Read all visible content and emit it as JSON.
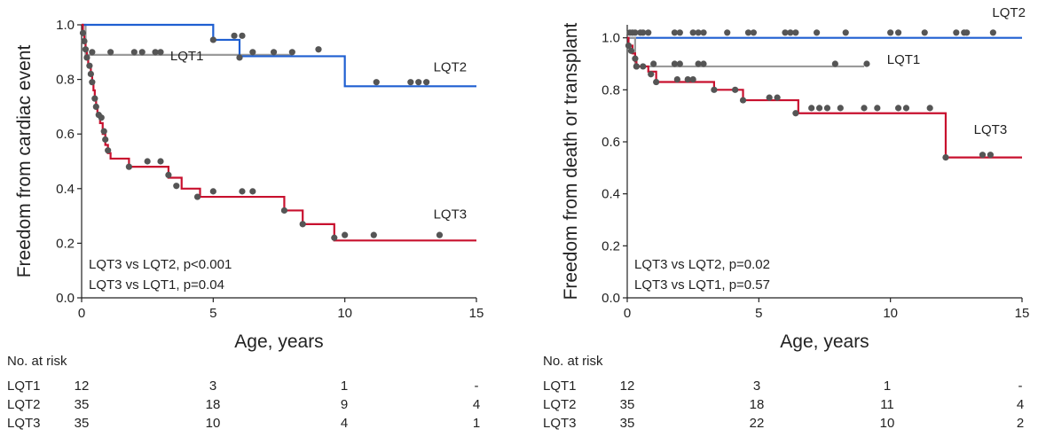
{
  "colors": {
    "LQT1": "#9a9a9a",
    "LQT2": "#1f5fd1",
    "LQT3": "#c8102e",
    "censor": "#555555"
  },
  "chart_data": [
    {
      "type": "line",
      "ylabel": "Freedom from cardiac event",
      "xlabel": "Age, years",
      "xlim": [
        0,
        15
      ],
      "ylim": [
        0,
        1.0
      ],
      "xticks": [
        "0",
        "5",
        "10",
        "15"
      ],
      "yticks": [
        "0.0",
        "0.2",
        "0.4",
        "0.6",
        "0.8",
        "1.0"
      ],
      "ytick_values": [
        0,
        0.2,
        0.4,
        0.6,
        0.8,
        1.0
      ],
      "xtick_values": [
        0,
        5,
        10,
        15
      ],
      "stats": [
        "LQT3 vs LQT2, p<0.001",
        "LQT3 vs LQT1, p=0.04"
      ],
      "series": [
        {
          "name": "LQT1",
          "label_pos": [
            4.0,
            0.87
          ],
          "steps": [
            [
              0,
              1.0
            ],
            [
              0.15,
              0.89
            ],
            [
              6.0,
              0.89
            ],
            [
              8.0,
              0.89
            ]
          ],
          "censored": [
            [
              0.4,
              0.9
            ],
            [
              1.1,
              0.9
            ],
            [
              2.0,
              0.9
            ],
            [
              2.3,
              0.9
            ],
            [
              2.8,
              0.9
            ],
            [
              3.0,
              0.9
            ],
            [
              6.0,
              0.88
            ],
            [
              7.3,
              0.9
            ]
          ]
        },
        {
          "name": "LQT2",
          "label_pos": [
            14.0,
            0.83
          ],
          "steps": [
            [
              0,
              1.0
            ],
            [
              5.0,
              1.0
            ],
            [
              5.0,
              0.945
            ],
            [
              6.0,
              0.945
            ],
            [
              6.0,
              0.885
            ],
            [
              10.0,
              0.885
            ],
            [
              10.0,
              0.775
            ],
            [
              15.0,
              0.775
            ]
          ],
          "censored": [
            [
              5.0,
              0.945
            ],
            [
              5.8,
              0.96
            ],
            [
              6.1,
              0.96
            ],
            [
              6.5,
              0.9
            ],
            [
              8.0,
              0.9
            ],
            [
              9.0,
              0.91
            ],
            [
              11.2,
              0.79
            ],
            [
              12.5,
              0.79
            ],
            [
              12.8,
              0.79
            ],
            [
              13.1,
              0.79
            ]
          ]
        },
        {
          "name": "LQT3",
          "label_pos": [
            14.0,
            0.29
          ],
          "steps": [
            [
              0,
              1.0
            ],
            [
              0.05,
              0.97
            ],
            [
              0.1,
              0.94
            ],
            [
              0.15,
              0.91
            ],
            [
              0.2,
              0.88
            ],
            [
              0.25,
              0.85
            ],
            [
              0.35,
              0.82
            ],
            [
              0.4,
              0.79
            ],
            [
              0.45,
              0.76
            ],
            [
              0.5,
              0.73
            ],
            [
              0.55,
              0.7
            ],
            [
              0.6,
              0.67
            ],
            [
              0.7,
              0.64
            ],
            [
              0.8,
              0.6
            ],
            [
              0.9,
              0.56
            ],
            [
              1.0,
              0.53
            ],
            [
              1.1,
              0.51
            ],
            [
              1.8,
              0.48
            ],
            [
              3.3,
              0.44
            ],
            [
              3.8,
              0.4
            ],
            [
              4.5,
              0.37
            ],
            [
              7.7,
              0.32
            ],
            [
              8.4,
              0.27
            ],
            [
              9.6,
              0.21
            ],
            [
              15.0,
              0.21
            ]
          ],
          "censored": [
            [
              0.05,
              0.97
            ],
            [
              0.1,
              0.94
            ],
            [
              0.15,
              0.91
            ],
            [
              0.2,
              0.88
            ],
            [
              0.3,
              0.85
            ],
            [
              0.35,
              0.82
            ],
            [
              0.4,
              0.79
            ],
            [
              0.5,
              0.73
            ],
            [
              0.55,
              0.7
            ],
            [
              0.65,
              0.67
            ],
            [
              0.75,
              0.66
            ],
            [
              0.85,
              0.61
            ],
            [
              0.9,
              0.58
            ],
            [
              1.0,
              0.54
            ],
            [
              1.8,
              0.48
            ],
            [
              2.5,
              0.5
            ],
            [
              3.0,
              0.5
            ],
            [
              3.3,
              0.45
            ],
            [
              3.6,
              0.41
            ],
            [
              4.4,
              0.37
            ],
            [
              5.0,
              0.39
            ],
            [
              6.1,
              0.39
            ],
            [
              6.5,
              0.39
            ],
            [
              7.7,
              0.32
            ],
            [
              8.4,
              0.27
            ],
            [
              9.6,
              0.22
            ],
            [
              10.0,
              0.23
            ],
            [
              11.1,
              0.23
            ],
            [
              13.6,
              0.23
            ]
          ]
        }
      ]
    },
    {
      "type": "line",
      "ylabel": "Freedom from death or transplant",
      "xlabel": "Age, years",
      "xlim": [
        0,
        15
      ],
      "ylim": [
        0,
        1.05
      ],
      "xticks": [
        "0",
        "5",
        "10",
        "15"
      ],
      "yticks": [
        "0.0",
        "0.2",
        "0.4",
        "0.6",
        "0.8",
        "1.0"
      ],
      "ytick_values": [
        0,
        0.2,
        0.4,
        0.6,
        0.8,
        1.0
      ],
      "xtick_values": [
        0,
        5,
        10,
        15
      ],
      "stats": [
        "LQT3 vs LQT2, p=0.02",
        "LQT3 vs LQT1, p=0.57"
      ],
      "series": [
        {
          "name": "LQT2",
          "label_pos": [
            14.5,
            1.08
          ],
          "steps": [
            [
              0,
              1.0
            ],
            [
              15.0,
              1.0
            ]
          ],
          "censored": [
            [
              0.1,
              1.02
            ],
            [
              0.3,
              1.02
            ],
            [
              0.5,
              1.02
            ],
            [
              0.6,
              1.02
            ],
            [
              0.8,
              1.02
            ],
            [
              1.8,
              1.02
            ],
            [
              2.0,
              1.02
            ],
            [
              2.5,
              1.02
            ],
            [
              2.7,
              1.02
            ],
            [
              2.9,
              1.02
            ],
            [
              3.8,
              1.02
            ],
            [
              4.6,
              1.02
            ],
            [
              4.8,
              1.02
            ],
            [
              6.0,
              1.02
            ],
            [
              6.2,
              1.02
            ],
            [
              6.4,
              1.02
            ],
            [
              7.2,
              1.02
            ],
            [
              8.3,
              1.02
            ],
            [
              10.0,
              1.02
            ],
            [
              10.3,
              1.02
            ],
            [
              11.3,
              1.02
            ],
            [
              12.5,
              1.02
            ],
            [
              12.8,
              1.02
            ],
            [
              12.9,
              1.02
            ],
            [
              13.9,
              1.02
            ]
          ]
        },
        {
          "name": "LQT1",
          "label_pos": [
            10.5,
            0.9
          ],
          "steps": [
            [
              0,
              1.0
            ],
            [
              0.3,
              0.89
            ],
            [
              9.0,
              0.89
            ]
          ],
          "censored": [
            [
              0.2,
              1.02
            ],
            [
              0.35,
              0.89
            ],
            [
              1.0,
              0.9
            ],
            [
              1.8,
              0.9
            ],
            [
              2.0,
              0.9
            ],
            [
              2.7,
              0.9
            ],
            [
              2.9,
              0.9
            ],
            [
              7.9,
              0.9
            ],
            [
              9.1,
              0.9
            ]
          ]
        },
        {
          "name": "LQT3",
          "label_pos": [
            13.8,
            0.63
          ],
          "steps": [
            [
              0,
              1.0
            ],
            [
              0.05,
              0.97
            ],
            [
              0.2,
              0.94
            ],
            [
              0.3,
              0.91
            ],
            [
              0.35,
              0.89
            ],
            [
              0.8,
              0.87
            ],
            [
              1.1,
              0.83
            ],
            [
              3.3,
              0.8
            ],
            [
              4.4,
              0.76
            ],
            [
              6.5,
              0.71
            ],
            [
              12.1,
              0.71
            ],
            [
              12.1,
              0.54
            ],
            [
              15.0,
              0.54
            ]
          ],
          "censored": [
            [
              0.05,
              0.97
            ],
            [
              0.15,
              0.95
            ],
            [
              0.3,
              0.92
            ],
            [
              0.35,
              0.89
            ],
            [
              0.6,
              0.89
            ],
            [
              0.9,
              0.86
            ],
            [
              1.1,
              0.83
            ],
            [
              1.9,
              0.84
            ],
            [
              2.3,
              0.84
            ],
            [
              2.5,
              0.84
            ],
            [
              3.3,
              0.8
            ],
            [
              4.1,
              0.8
            ],
            [
              4.4,
              0.76
            ],
            [
              5.4,
              0.77
            ],
            [
              5.7,
              0.77
            ],
            [
              6.4,
              0.71
            ],
            [
              7.0,
              0.73
            ],
            [
              7.3,
              0.73
            ],
            [
              7.6,
              0.73
            ],
            [
              8.1,
              0.73
            ],
            [
              9.0,
              0.73
            ],
            [
              9.5,
              0.73
            ],
            [
              10.3,
              0.73
            ],
            [
              10.6,
              0.73
            ],
            [
              11.5,
              0.73
            ],
            [
              12.1,
              0.54
            ],
            [
              13.5,
              0.55
            ],
            [
              13.8,
              0.55
            ]
          ]
        }
      ]
    }
  ],
  "risk_tables": [
    {
      "header": "No. at risk",
      "rows": [
        {
          "group": "LQT1",
          "values": [
            "12",
            "3",
            "1",
            "-"
          ]
        },
        {
          "group": "LQT2",
          "values": [
            "35",
            "18",
            "9",
            "4"
          ]
        },
        {
          "group": "LQT3",
          "values": [
            "35",
            "10",
            "4",
            "1"
          ]
        }
      ]
    },
    {
      "header": "No. at risk",
      "rows": [
        {
          "group": "LQT1",
          "values": [
            "12",
            "3",
            "1",
            "-"
          ]
        },
        {
          "group": "LQT2",
          "values": [
            "35",
            "18",
            "11",
            "4"
          ]
        },
        {
          "group": "LQT3",
          "values": [
            "35",
            "22",
            "10",
            "2"
          ]
        }
      ]
    }
  ]
}
